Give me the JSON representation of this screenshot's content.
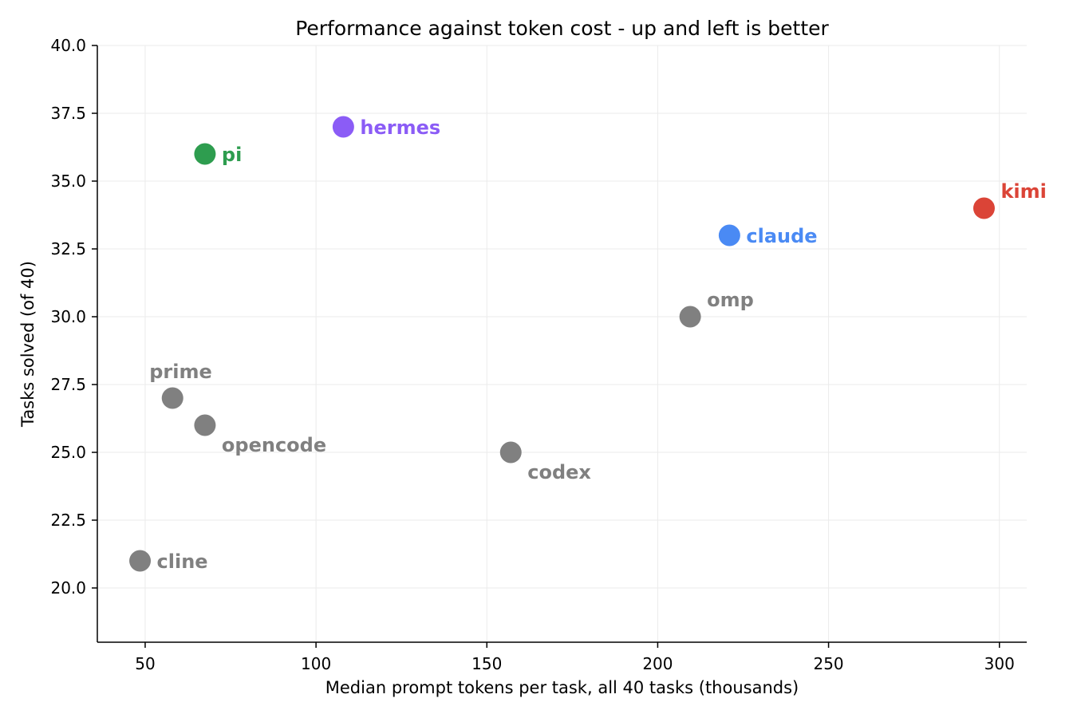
{
  "chart_data": {
    "type": "scatter",
    "title": "Performance against token cost - up and left is better",
    "xlabel": "Median prompt tokens per task, all 40 tasks (thousands)",
    "ylabel": "Tasks solved (of 40)",
    "xlim": [
      36,
      308
    ],
    "ylim": [
      18.0,
      40.0
    ],
    "xticks": [
      50,
      100,
      150,
      200,
      250,
      300
    ],
    "xtick_labels": [
      "50",
      "100",
      "150",
      "200",
      "250",
      "300"
    ],
    "yticks": [
      20.0,
      22.5,
      25.0,
      27.5,
      30.0,
      32.5,
      35.0,
      37.5,
      40.0
    ],
    "ytick_labels": [
      "20.0",
      "22.5",
      "25.0",
      "27.5",
      "30.0",
      "32.5",
      "35.0",
      "37.5",
      "40.0"
    ],
    "grid": true,
    "points": [
      {
        "label": "hermes",
        "x": 108,
        "y": 37,
        "color": "#8B5CF6",
        "label_position": "right"
      },
      {
        "label": "pi",
        "x": 67.5,
        "y": 36,
        "color": "#2E9D4F",
        "label_position": "right"
      },
      {
        "label": "kimi",
        "x": 295.5,
        "y": 34,
        "color": "#DB4437",
        "label_position": "upper-right"
      },
      {
        "label": "claude",
        "x": 221,
        "y": 33,
        "color": "#4A8AF4",
        "label_position": "right"
      },
      {
        "label": "omp",
        "x": 209.5,
        "y": 30,
        "color": "#808080",
        "label_position": "upper-right"
      },
      {
        "label": "prime",
        "x": 58,
        "y": 27,
        "color": "#808080",
        "label_position": "above"
      },
      {
        "label": "opencode",
        "x": 67.5,
        "y": 26,
        "color": "#808080",
        "label_position": "lower-right"
      },
      {
        "label": "codex",
        "x": 157,
        "y": 25,
        "color": "#808080",
        "label_position": "lower-right"
      },
      {
        "label": "cline",
        "x": 48.5,
        "y": 21,
        "color": "#808080",
        "label_position": "right"
      }
    ]
  }
}
